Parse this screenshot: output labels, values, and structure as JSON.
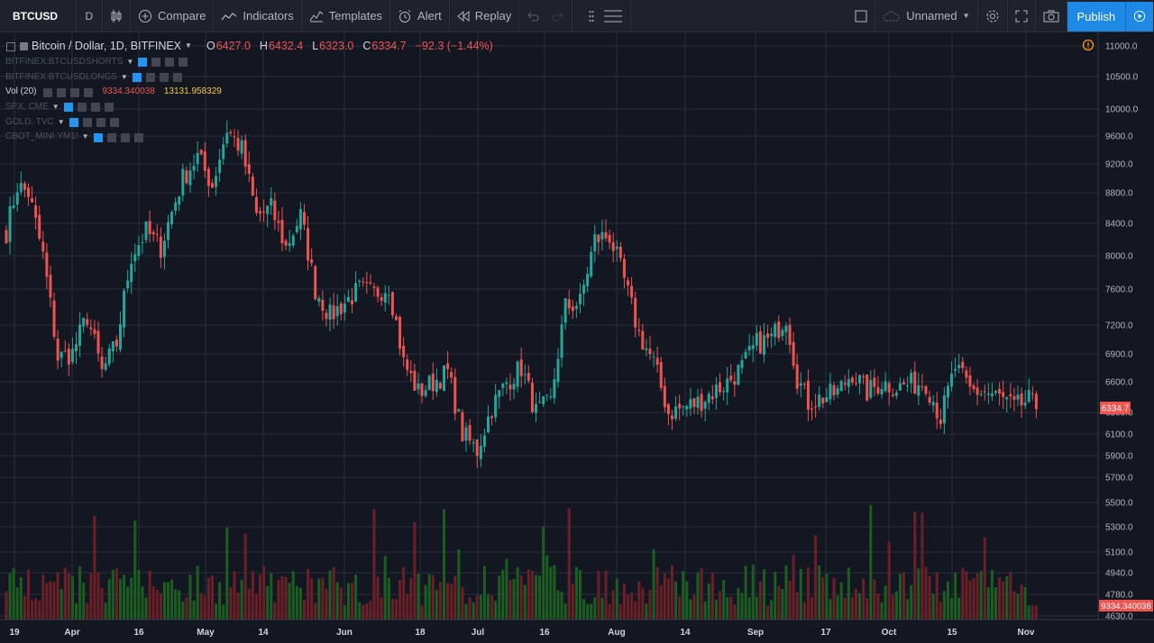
{
  "toolbar": {
    "symbol": "BTCUSD",
    "interval": "D",
    "compare": "Compare",
    "indicators": "Indicators",
    "templates": "Templates",
    "alert": "Alert",
    "replay": "Replay",
    "layout_name": "Unnamed",
    "publish": "Publish"
  },
  "legend": {
    "title": "Bitcoin / Dollar, 1D, BITFINEX",
    "o_label": "O",
    "o": "6427.0",
    "h_label": "H",
    "h": "6432.4",
    "l_label": "L",
    "l": "6323.0",
    "c_label": "C",
    "c": "6334.7",
    "change": "−92.3 (−1.44%)",
    "studies": [
      "BITFINEX:BTCUSDSHORTS",
      "BITFINEX:BTCUSDLONGS"
    ],
    "vol_label": "Vol (20)",
    "vol_value": "9334.340038",
    "vol_ma": "13131.958329",
    "overlays": [
      "SPX, CME",
      "GOLD, TVC",
      "CBOT_MINI:YM1!"
    ]
  },
  "colors": {
    "up": "#26a69a",
    "down": "#ef5350",
    "vol_up": "#1b5e20",
    "vol_down": "#6b1f26",
    "grid": "#2a2e39",
    "bg": "#131722",
    "label_bg": "#ef5350"
  },
  "chart_data": {
    "type": "candlestick",
    "title": "Bitcoin / Dollar, 1D, BITFINEX",
    "y_ticks": [
      11000,
      10500,
      10000,
      9600,
      9200,
      8800,
      8400,
      8000,
      7600,
      7200,
      6900,
      6600,
      6300,
      6100,
      5900,
      5700,
      5500,
      5300,
      5100,
      4940,
      4780,
      4630
    ],
    "y_scale": "log",
    "x_ticks": [
      "19",
      "Apr",
      "16",
      "May",
      "14",
      "Jun",
      "18",
      "Jul",
      "16",
      "Aug",
      "14",
      "Sep",
      "17",
      "Oct",
      "15",
      "Nov"
    ],
    "last_price": "6334.7",
    "last_volume": "9334.340038",
    "grid": true,
    "waypoints": [
      {
        "day": 0,
        "close": 8300
      },
      {
        "day": 3,
        "close": 8900
      },
      {
        "day": 6,
        "close": 8800
      },
      {
        "day": 10,
        "close": 8000
      },
      {
        "day": 14,
        "close": 6850
      },
      {
        "day": 18,
        "close": 6900
      },
      {
        "day": 22,
        "close": 7300
      },
      {
        "day": 26,
        "close": 6700
      },
      {
        "day": 30,
        "close": 7000
      },
      {
        "day": 34,
        "close": 8000
      },
      {
        "day": 38,
        "close": 8300
      },
      {
        "day": 42,
        "close": 8100
      },
      {
        "day": 48,
        "close": 9000
      },
      {
        "day": 52,
        "close": 9300
      },
      {
        "day": 56,
        "close": 8900
      },
      {
        "day": 60,
        "close": 9700
      },
      {
        "day": 64,
        "close": 9400
      },
      {
        "day": 68,
        "close": 8500
      },
      {
        "day": 72,
        "close": 8600
      },
      {
        "day": 76,
        "close": 8100
      },
      {
        "day": 80,
        "close": 8500
      },
      {
        "day": 84,
        "close": 7600
      },
      {
        "day": 88,
        "close": 7300
      },
      {
        "day": 92,
        "close": 7450
      },
      {
        "day": 96,
        "close": 7600
      },
      {
        "day": 100,
        "close": 7550
      },
      {
        "day": 104,
        "close": 7650
      },
      {
        "day": 108,
        "close": 6800
      },
      {
        "day": 112,
        "close": 6500
      },
      {
        "day": 116,
        "close": 6600
      },
      {
        "day": 120,
        "close": 6700
      },
      {
        "day": 124,
        "close": 6100
      },
      {
        "day": 128,
        "close": 5950
      },
      {
        "day": 132,
        "close": 6350
      },
      {
        "day": 136,
        "close": 6600
      },
      {
        "day": 140,
        "close": 6750
      },
      {
        "day": 144,
        "close": 6300
      },
      {
        "day": 148,
        "close": 6400
      },
      {
        "day": 152,
        "close": 7400
      },
      {
        "day": 156,
        "close": 7450
      },
      {
        "day": 160,
        "close": 8200
      },
      {
        "day": 164,
        "close": 8250
      },
      {
        "day": 168,
        "close": 7700
      },
      {
        "day": 172,
        "close": 7100
      },
      {
        "day": 176,
        "close": 6800
      },
      {
        "day": 180,
        "close": 6300
      },
      {
        "day": 184,
        "close": 6350
      },
      {
        "day": 188,
        "close": 6400
      },
      {
        "day": 192,
        "close": 6500
      },
      {
        "day": 196,
        "close": 6600
      },
      {
        "day": 200,
        "close": 6750
      },
      {
        "day": 204,
        "close": 7000
      },
      {
        "day": 208,
        "close": 7050
      },
      {
        "day": 212,
        "close": 7300
      },
      {
        "day": 215,
        "close": 6650
      },
      {
        "day": 218,
        "close": 6400
      },
      {
        "day": 222,
        "close": 6450
      },
      {
        "day": 226,
        "close": 6500
      },
      {
        "day": 230,
        "close": 6700
      },
      {
        "day": 234,
        "close": 6500
      },
      {
        "day": 238,
        "close": 6600
      },
      {
        "day": 242,
        "close": 6550
      },
      {
        "day": 246,
        "close": 6580
      },
      {
        "day": 250,
        "close": 6600
      },
      {
        "day": 254,
        "close": 6250
      },
      {
        "day": 258,
        "close": 6750
      },
      {
        "day": 262,
        "close": 6520
      },
      {
        "day": 266,
        "close": 6500
      },
      {
        "day": 270,
        "close": 6450
      },
      {
        "day": 274,
        "close": 6350
      },
      {
        "day": 278,
        "close": 6420
      },
      {
        "day": 280,
        "close": 6334.7
      }
    ]
  }
}
